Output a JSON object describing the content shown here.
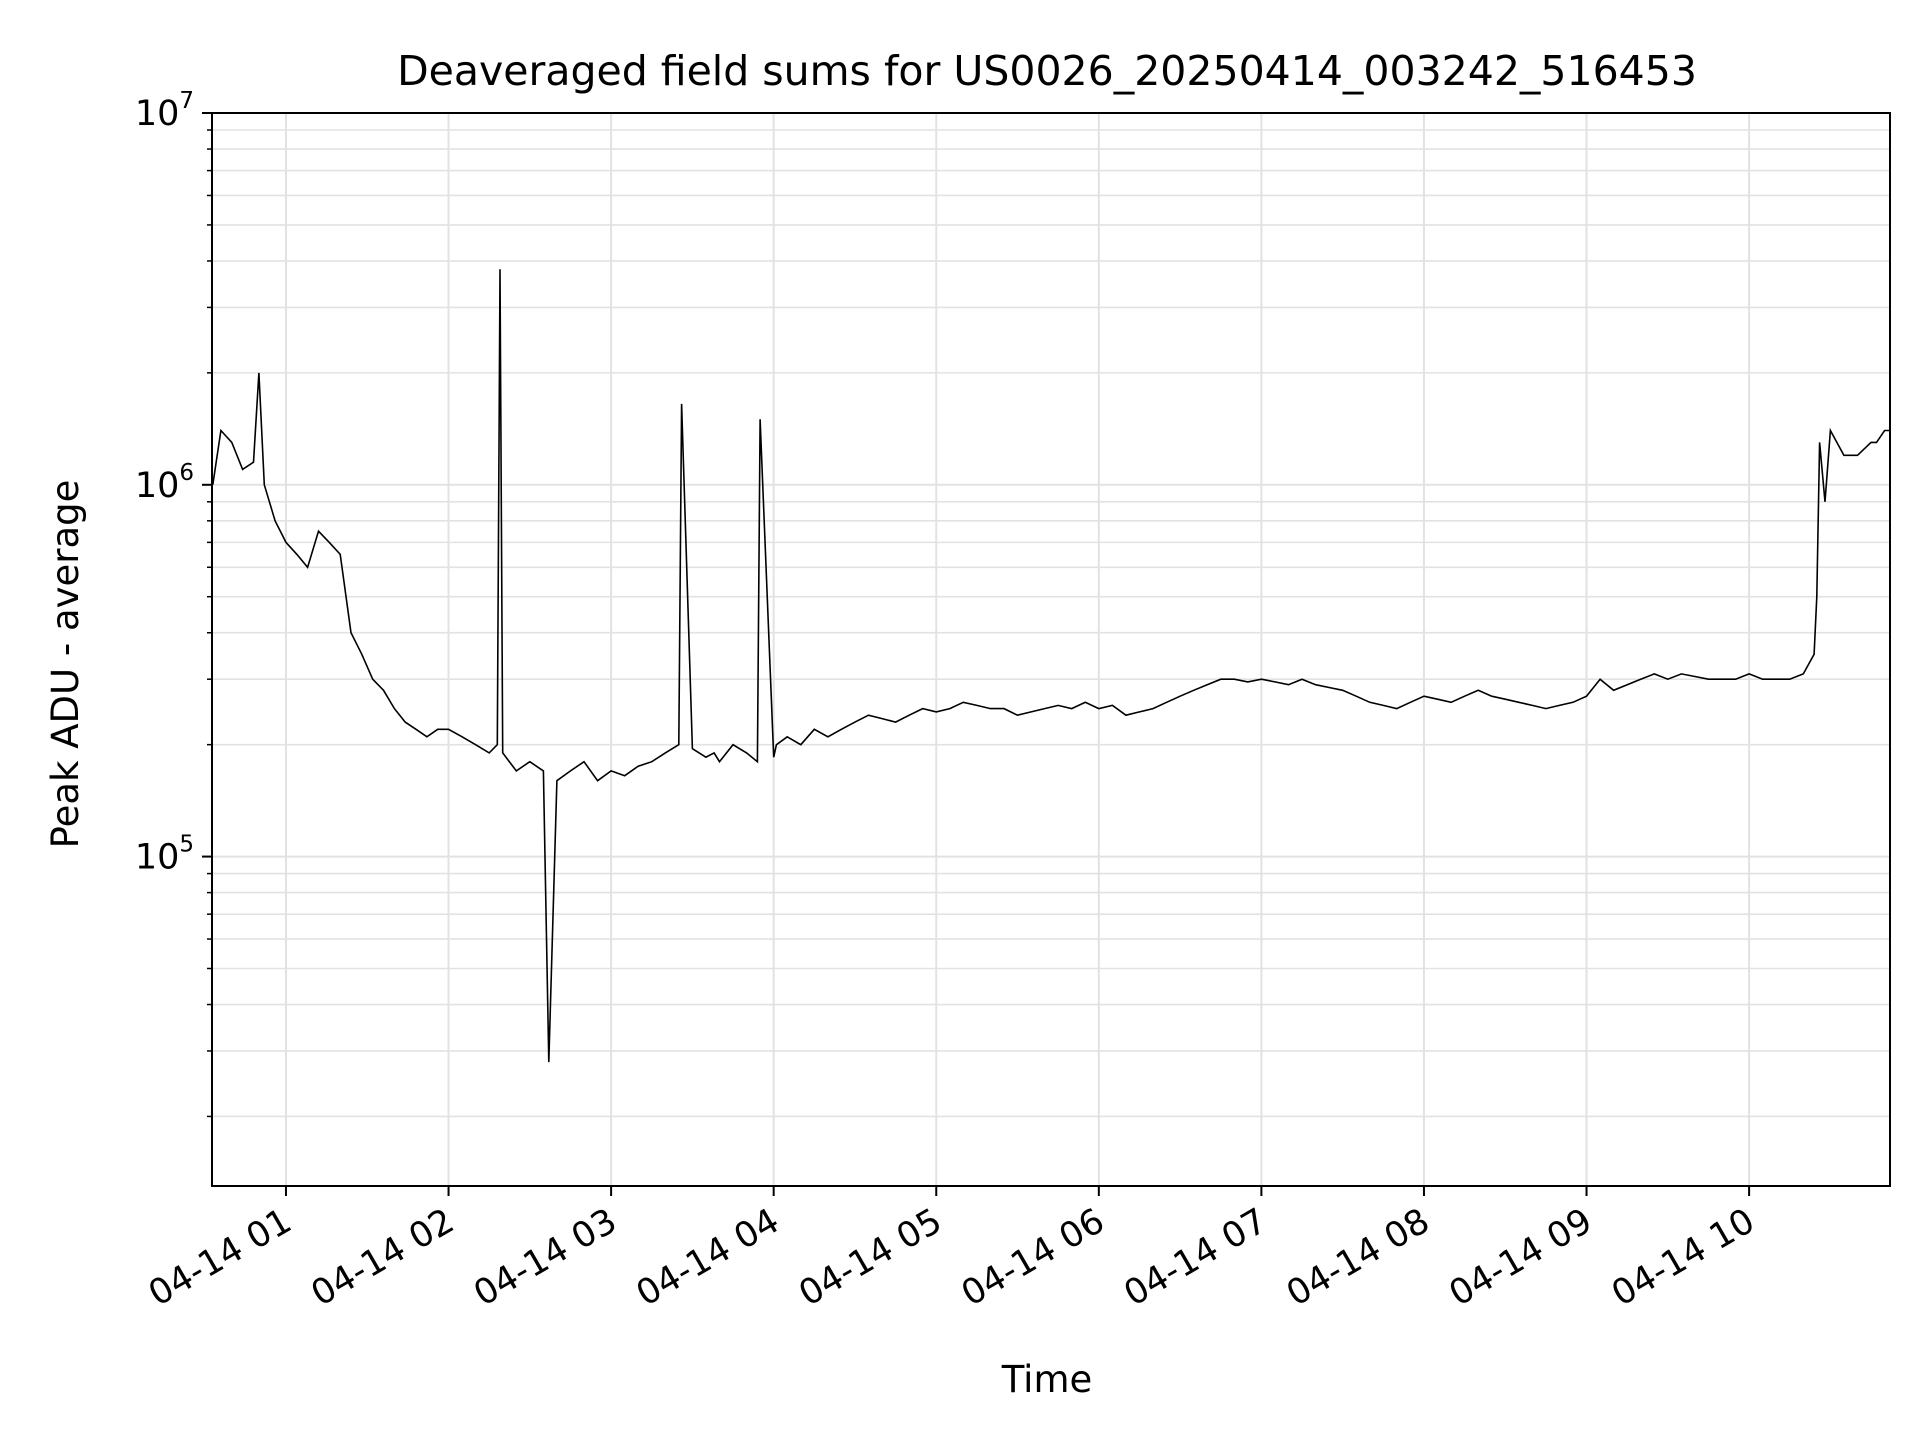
{
  "chart_data": {
    "type": "line",
    "title": "Deaveraged field sums for US0026_20250414_003242_516453",
    "xlabel": "Time",
    "ylabel": "Peak ADU - average",
    "yscale": "log",
    "ylim": [
      13000,
      10000000
    ],
    "xlim": [
      "2025-04-14 00:32:42",
      "2025-04-14 10:52:00"
    ],
    "grid": true,
    "line_color": "#000000",
    "x_ticks": [
      "2025-04-14 01:00",
      "2025-04-14 02:00",
      "2025-04-14 03:00",
      "2025-04-14 04:00",
      "2025-04-14 05:00",
      "2025-04-14 06:00",
      "2025-04-14 07:00",
      "2025-04-14 08:00",
      "2025-04-14 09:00",
      "2025-04-14 10:00"
    ],
    "x_tick_labels": [
      "04-14 01",
      "04-14 02",
      "04-14 03",
      "04-14 04",
      "04-14 05",
      "04-14 06",
      "04-14 07",
      "04-14 08",
      "04-14 09",
      "04-14 10"
    ],
    "y_ticks": [
      {
        "base": "10",
        "exp": "5",
        "value": 100000
      },
      {
        "base": "10",
        "exp": "6",
        "value": 1000000
      },
      {
        "base": "10",
        "exp": "7",
        "value": 10000000
      }
    ],
    "series": [
      {
        "x": [
          "2025-04-14 00:33",
          "2025-04-14 00:36",
          "2025-04-14 00:40",
          "2025-04-14 00:44",
          "2025-04-14 00:48",
          "2025-04-14 00:50",
          "2025-04-14 00:52",
          "2025-04-14 00:56",
          "2025-04-14 01:00",
          "2025-04-14 01:04",
          "2025-04-14 01:08",
          "2025-04-14 01:12",
          "2025-04-14 01:16",
          "2025-04-14 01:20",
          "2025-04-14 01:24",
          "2025-04-14 01:28",
          "2025-04-14 01:32",
          "2025-04-14 01:36",
          "2025-04-14 01:40",
          "2025-04-14 01:44",
          "2025-04-14 01:48",
          "2025-04-14 01:52",
          "2025-04-14 01:56",
          "2025-04-14 02:00",
          "2025-04-14 02:05",
          "2025-04-14 02:10",
          "2025-04-14 02:15",
          "2025-04-14 02:18",
          "2025-04-14 02:19",
          "2025-04-14 02:20",
          "2025-04-14 02:25",
          "2025-04-14 02:30",
          "2025-04-14 02:35",
          "2025-04-14 02:37",
          "2025-04-14 02:40",
          "2025-04-14 02:45",
          "2025-04-14 02:50",
          "2025-04-14 02:55",
          "2025-04-14 03:00",
          "2025-04-14 03:05",
          "2025-04-14 03:10",
          "2025-04-14 03:15",
          "2025-04-14 03:20",
          "2025-04-14 03:25",
          "2025-04-14 03:26",
          "2025-04-14 03:30",
          "2025-04-14 03:35",
          "2025-04-14 03:38",
          "2025-04-14 03:40",
          "2025-04-14 03:45",
          "2025-04-14 03:50",
          "2025-04-14 03:54",
          "2025-04-14 03:55",
          "2025-04-14 04:00",
          "2025-04-14 04:01",
          "2025-04-14 04:05",
          "2025-04-14 04:10",
          "2025-04-14 04:15",
          "2025-04-14 04:20",
          "2025-04-14 04:25",
          "2025-04-14 04:30",
          "2025-04-14 04:35",
          "2025-04-14 04:40",
          "2025-04-14 04:45",
          "2025-04-14 04:50",
          "2025-04-14 04:55",
          "2025-04-14 05:00",
          "2025-04-14 05:05",
          "2025-04-14 05:10",
          "2025-04-14 05:15",
          "2025-04-14 05:20",
          "2025-04-14 05:25",
          "2025-04-14 05:30",
          "2025-04-14 05:35",
          "2025-04-14 05:40",
          "2025-04-14 05:45",
          "2025-04-14 05:50",
          "2025-04-14 05:55",
          "2025-04-14 06:00",
          "2025-04-14 06:05",
          "2025-04-14 06:10",
          "2025-04-14 06:15",
          "2025-04-14 06:20",
          "2025-04-14 06:25",
          "2025-04-14 06:30",
          "2025-04-14 06:35",
          "2025-04-14 06:40",
          "2025-04-14 06:45",
          "2025-04-14 06:50",
          "2025-04-14 06:55",
          "2025-04-14 07:00",
          "2025-04-14 07:05",
          "2025-04-14 07:10",
          "2025-04-14 07:15",
          "2025-04-14 07:20",
          "2025-04-14 07:25",
          "2025-04-14 07:30",
          "2025-04-14 07:35",
          "2025-04-14 07:40",
          "2025-04-14 07:45",
          "2025-04-14 07:50",
          "2025-04-14 07:55",
          "2025-04-14 08:00",
          "2025-04-14 08:05",
          "2025-04-14 08:10",
          "2025-04-14 08:15",
          "2025-04-14 08:20",
          "2025-04-14 08:25",
          "2025-04-14 08:30",
          "2025-04-14 08:35",
          "2025-04-14 08:40",
          "2025-04-14 08:45",
          "2025-04-14 08:50",
          "2025-04-14 08:55",
          "2025-04-14 09:00",
          "2025-04-14 09:05",
          "2025-04-14 09:10",
          "2025-04-14 09:15",
          "2025-04-14 09:20",
          "2025-04-14 09:25",
          "2025-04-14 09:30",
          "2025-04-14 09:35",
          "2025-04-14 09:40",
          "2025-04-14 09:45",
          "2025-04-14 09:50",
          "2025-04-14 09:55",
          "2025-04-14 10:00",
          "2025-04-14 10:05",
          "2025-04-14 10:10",
          "2025-04-14 10:15",
          "2025-04-14 10:20",
          "2025-04-14 10:24",
          "2025-04-14 10:25",
          "2025-04-14 10:26",
          "2025-04-14 10:28",
          "2025-04-14 10:30",
          "2025-04-14 10:35",
          "2025-04-14 10:40",
          "2025-04-14 10:45",
          "2025-04-14 10:47",
          "2025-04-14 10:50",
          "2025-04-14 10:52"
        ],
        "y": [
          1000000,
          1400000,
          1300000,
          1100000,
          1150000,
          2000000,
          1000000,
          800000,
          700000,
          650000,
          600000,
          750000,
          700000,
          650000,
          400000,
          350000,
          300000,
          280000,
          250000,
          230000,
          220000,
          210000,
          220000,
          220000,
          210000,
          200000,
          190000,
          200000,
          3800000,
          190000,
          170000,
          180000,
          170000,
          28000,
          160000,
          170000,
          180000,
          160000,
          170000,
          165000,
          175000,
          180000,
          190000,
          200000,
          1650000,
          195000,
          185000,
          190000,
          180000,
          200000,
          190000,
          180000,
          1500000,
          185000,
          200000,
          210000,
          200000,
          220000,
          210000,
          220000,
          230000,
          240000,
          235000,
          230000,
          240000,
          250000,
          245000,
          250000,
          260000,
          255000,
          250000,
          250000,
          240000,
          245000,
          250000,
          255000,
          250000,
          260000,
          250000,
          255000,
          240000,
          245000,
          250000,
          260000,
          270000,
          280000,
          290000,
          300000,
          300000,
          295000,
          300000,
          295000,
          290000,
          300000,
          290000,
          285000,
          280000,
          270000,
          260000,
          255000,
          250000,
          260000,
          270000,
          265000,
          260000,
          270000,
          280000,
          270000,
          265000,
          260000,
          255000,
          250000,
          255000,
          260000,
          270000,
          300000,
          280000,
          290000,
          300000,
          310000,
          300000,
          310000,
          305000,
          300000,
          300000,
          300000,
          310000,
          300000,
          300000,
          300000,
          310000,
          350000,
          500000,
          1300000,
          900000,
          1400000,
          1200000,
          1200000,
          1300000,
          1300000,
          1400000,
          1400000
        ]
      }
    ]
  }
}
